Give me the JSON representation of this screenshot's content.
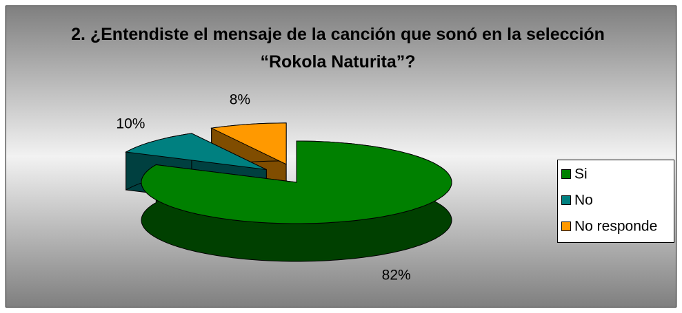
{
  "chart_data": {
    "type": "pie3d",
    "title": "2. ¿Entendiste el mensaje de la canción que sonó en la selección “Rokola Naturita”?",
    "categories": [
      "Si",
      "No",
      "No responde"
    ],
    "values": [
      82,
      10,
      8
    ],
    "value_labels": [
      "82%",
      "10%",
      "8%"
    ],
    "colors": [
      "#008000",
      "#008080",
      "#ff9900"
    ],
    "legend": "right"
  }
}
